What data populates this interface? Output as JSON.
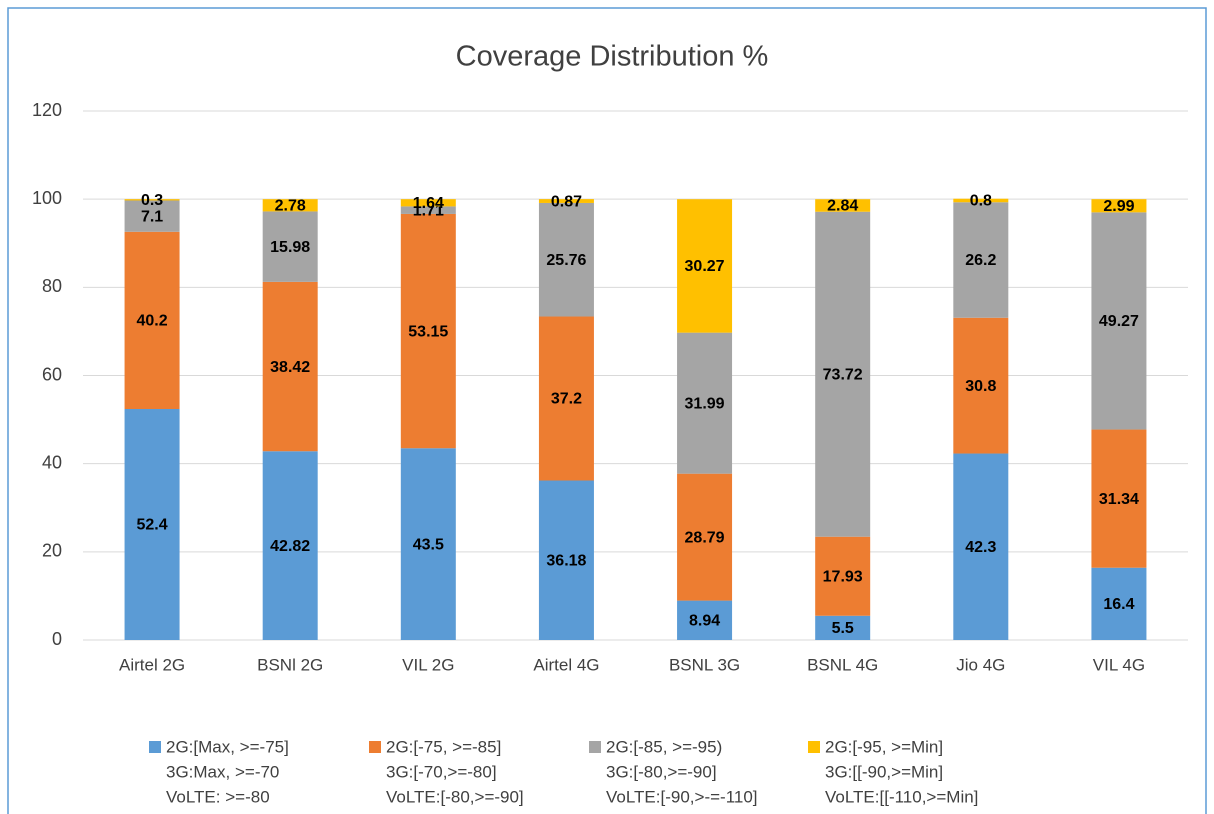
{
  "chart_data": {
    "type": "stacked_bar",
    "title": "Coverage Distribution %",
    "categories": [
      "Airtel 2G",
      "BSNl 2G",
      "VIL 2G",
      "Airtel 4G",
      "BSNL 3G",
      "BSNL 4G",
      "Jio 4G",
      "VIL 4G"
    ],
    "series": [
      {
        "name": [
          "2G:[Max, >=-75]",
          "3G:Max, >=-70",
          "VoLTE: >=-80"
        ],
        "color": "#5b9bd5",
        "values": [
          52.4,
          42.82,
          43.5,
          36.18,
          8.94,
          5.5,
          42.3,
          16.4
        ]
      },
      {
        "name": [
          "2G:[-75, >=-85]",
          "3G:[-70,>=-80]",
          "VoLTE:[-80,>=-90]"
        ],
        "color": "#ed7d31",
        "values": [
          40.2,
          38.42,
          53.15,
          37.2,
          28.79,
          17.93,
          30.8,
          31.34
        ]
      },
      {
        "name": [
          "2G:[-85, >=-95)",
          "3G:[-80,>=-90]",
          "VoLTE:[-90,>-=-110]"
        ],
        "color": "#a5a5a5",
        "values": [
          7.1,
          15.98,
          1.71,
          25.76,
          31.99,
          73.72,
          26.2,
          49.27
        ]
      },
      {
        "name": [
          "2G:[-95, >=Min]",
          "3G:[[-90,>=Min]",
          "VoLTE:[[-110,>=Min]"
        ],
        "color": "#ffc000",
        "values": [
          0.3,
          2.78,
          1.64,
          0.87,
          30.27,
          2.84,
          0.8,
          2.99
        ]
      }
    ],
    "ylim": [
      0,
      120
    ],
    "yticks": [
      0,
      20,
      40,
      60,
      80,
      100,
      120
    ],
    "grid": true,
    "legend": "bottom"
  }
}
